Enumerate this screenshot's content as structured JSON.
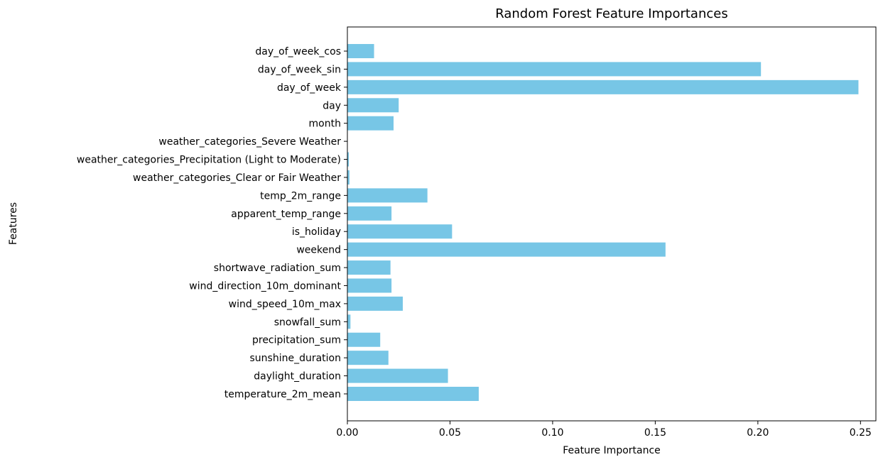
{
  "chart_data": {
    "type": "bar",
    "orientation": "horizontal",
    "title": "Random Forest Feature Importances",
    "xlabel": "Feature Importance",
    "ylabel": "Features",
    "xlim": [
      0,
      0.2575
    ],
    "xticks": [
      "0.00",
      "0.05",
      "0.10",
      "0.15",
      "0.20",
      "0.25"
    ],
    "grid": false,
    "bar_color": "#77C6E6",
    "categories": [
      "temperature_2m_mean",
      "daylight_duration",
      "sunshine_duration",
      "precipitation_sum",
      "snowfall_sum",
      "wind_speed_10m_max",
      "wind_direction_10m_dominant",
      "shortwave_radiation_sum",
      "weekend",
      "is_holiday",
      "apparent_temp_range",
      "temp_2m_range",
      "weather_categories_Clear or Fair Weather",
      "weather_categories_Precipitation (Light to Moderate)",
      "weather_categories_Severe Weather",
      "month",
      "day",
      "day_of_week",
      "day_of_week_sin",
      "day_of_week_cos"
    ],
    "values": [
      0.064,
      0.049,
      0.02,
      0.016,
      0.0015,
      0.027,
      0.0215,
      0.021,
      0.155,
      0.051,
      0.0215,
      0.039,
      0.001,
      0.0007,
      0.0,
      0.0225,
      0.025,
      0.249,
      0.2015,
      0.013
    ]
  }
}
